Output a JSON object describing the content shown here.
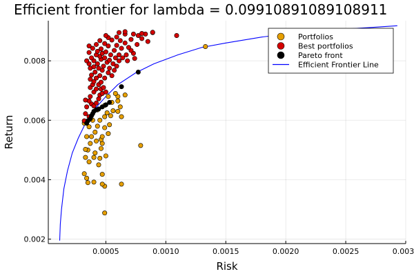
{
  "chart_data": {
    "type": "scatter",
    "title": "Efficient frontier for lambda = 0.09910891089108911",
    "xlabel": "Risk",
    "ylabel": "Return",
    "xlim": [
      2e-05,
      0.003
    ],
    "ylim": [
      0.00185,
      0.00935
    ],
    "grid": true,
    "legend_position": "top-right",
    "x_ticks": [
      {
        "value": 0.0005,
        "label": "0.0005"
      },
      {
        "value": 0.001,
        "label": "0.0010"
      },
      {
        "value": 0.0015,
        "label": "0.0015"
      },
      {
        "value": 0.002,
        "label": "0.0020"
      },
      {
        "value": 0.0025,
        "label": "0.0025"
      },
      {
        "value": 0.003,
        "label": "0.0030"
      }
    ],
    "y_ticks": [
      {
        "value": 0.002,
        "label": "0.002"
      },
      {
        "value": 0.004,
        "label": "0.004"
      },
      {
        "value": 0.006,
        "label": "0.006"
      },
      {
        "value": 0.008,
        "label": "0.008"
      }
    ],
    "series": [
      {
        "name": "Portfolios",
        "kind": "scatter",
        "color": "#e69f00",
        "points": [
          [
            0.00049,
            0.00288
          ],
          [
            0.00049,
            0.00378
          ],
          [
            0.00047,
            0.00385
          ],
          [
            0.00063,
            0.00385
          ],
          [
            0.00035,
            0.0039
          ],
          [
            0.0004,
            0.00392
          ],
          [
            0.00034,
            0.00405
          ],
          [
            0.00032,
            0.0042
          ],
          [
            0.00047,
            0.00418
          ],
          [
            0.00044,
            0.0045
          ],
          [
            0.00036,
            0.0046
          ],
          [
            0.0004,
            0.00475
          ],
          [
            0.00045,
            0.00472
          ],
          [
            0.00033,
            0.00475
          ],
          [
            0.0005,
            0.0048
          ],
          [
            0.00041,
            0.0049
          ],
          [
            0.00035,
            0.005
          ],
          [
            0.00046,
            0.00505
          ],
          [
            0.00033,
            0.00502
          ],
          [
            0.00079,
            0.00515
          ],
          [
            0.00037,
            0.00522
          ],
          [
            0.00047,
            0.00522
          ],
          [
            0.00042,
            0.0053
          ],
          [
            0.00046,
            0.00535
          ],
          [
            0.00038,
            0.00545
          ],
          [
            0.00047,
            0.00545
          ],
          [
            0.00034,
            0.00545
          ],
          [
            0.00052,
            0.00555
          ],
          [
            0.00041,
            0.0056
          ],
          [
            0.00049,
            0.00575
          ],
          [
            0.00036,
            0.00578
          ],
          [
            0.00043,
            0.0058
          ],
          [
            0.00053,
            0.00585
          ],
          [
            0.00032,
            0.0059
          ],
          [
            0.00039,
            0.006
          ],
          [
            0.00045,
            0.006
          ],
          [
            0.00049,
            0.00612
          ],
          [
            0.00054,
            0.00615
          ],
          [
            0.00063,
            0.00612
          ],
          [
            0.00051,
            0.00625
          ],
          [
            0.00056,
            0.00632
          ],
          [
            0.0006,
            0.0063
          ],
          [
            0.00043,
            0.00635
          ],
          [
            0.00062,
            0.00645
          ],
          [
            0.00049,
            0.0065
          ],
          [
            0.00055,
            0.0066
          ],
          [
            0.0006,
            0.00665
          ],
          [
            0.0006,
            0.0068
          ],
          [
            0.00066,
            0.00685
          ],
          [
            0.00052,
            0.0068
          ],
          [
            0.00058,
            0.0069
          ],
          [
            0.00133,
            0.00848
          ]
        ]
      },
      {
        "name": "Best portfolios",
        "kind": "scatter",
        "color": "#d40000",
        "points": [
          [
            0.00032,
            0.00598
          ],
          [
            0.00033,
            0.00622
          ],
          [
            0.00036,
            0.00612
          ],
          [
            0.00034,
            0.00645
          ],
          [
            0.00038,
            0.00655
          ],
          [
            0.00036,
            0.00665
          ],
          [
            0.00033,
            0.00668
          ],
          [
            0.0004,
            0.00648
          ],
          [
            0.00042,
            0.00658
          ],
          [
            0.00037,
            0.0068
          ],
          [
            0.00044,
            0.00672
          ],
          [
            0.00045,
            0.00685
          ],
          [
            0.0004,
            0.00695
          ],
          [
            0.00047,
            0.0069
          ],
          [
            0.00042,
            0.00705
          ],
          [
            0.00046,
            0.00705
          ],
          [
            0.0005,
            0.00695
          ],
          [
            0.00048,
            0.0071
          ],
          [
            0.00037,
            0.0071
          ],
          [
            0.00039,
            0.0072
          ],
          [
            0.00044,
            0.0072
          ],
          [
            0.0004,
            0.0073
          ],
          [
            0.00046,
            0.00728
          ],
          [
            0.00037,
            0.00738
          ],
          [
            0.00042,
            0.00742
          ],
          [
            0.00049,
            0.00742
          ],
          [
            0.00045,
            0.0075
          ],
          [
            0.00038,
            0.00752
          ],
          [
            0.00055,
            0.0075
          ],
          [
            0.00052,
            0.0076
          ],
          [
            0.00041,
            0.00762
          ],
          [
            0.00047,
            0.00768
          ],
          [
            0.00057,
            0.00768
          ],
          [
            0.00037,
            0.00775
          ],
          [
            0.00044,
            0.00775
          ],
          [
            0.00053,
            0.00775
          ],
          [
            0.0004,
            0.0078
          ],
          [
            0.00048,
            0.00782
          ],
          [
            0.00059,
            0.00782
          ],
          [
            0.00036,
            0.0079
          ],
          [
            0.00043,
            0.0079
          ],
          [
            0.00051,
            0.00795
          ],
          [
            0.00056,
            0.0079
          ],
          [
            0.00034,
            0.008
          ],
          [
            0.0004,
            0.008
          ],
          [
            0.00046,
            0.00805
          ],
          [
            0.00053,
            0.00802
          ],
          [
            0.00061,
            0.008
          ],
          [
            0.00068,
            0.008
          ],
          [
            0.00038,
            0.0081
          ],
          [
            0.00045,
            0.00815
          ],
          [
            0.00049,
            0.0081
          ],
          [
            0.00058,
            0.0081
          ],
          [
            0.00064,
            0.0081
          ],
          [
            0.00074,
            0.00808
          ],
          [
            0.00042,
            0.0082
          ],
          [
            0.00054,
            0.0082
          ],
          [
            0.00047,
            0.00825
          ],
          [
            0.00061,
            0.0082
          ],
          [
            0.00067,
            0.0082
          ],
          [
            0.00073,
            0.00825
          ],
          [
            0.00036,
            0.00828
          ],
          [
            0.00043,
            0.00832
          ],
          [
            0.0005,
            0.0083
          ],
          [
            0.00057,
            0.00835
          ],
          [
            0.00071,
            0.00835
          ],
          [
            0.00039,
            0.00842
          ],
          [
            0.00046,
            0.0084
          ],
          [
            0.00063,
            0.00842
          ],
          [
            0.00069,
            0.00845
          ],
          [
            0.00036,
            0.0085
          ],
          [
            0.00052,
            0.0085
          ],
          [
            0.00059,
            0.00852
          ],
          [
            0.00076,
            0.00855
          ],
          [
            0.00085,
            0.00865
          ],
          [
            0.00042,
            0.00855
          ],
          [
            0.00049,
            0.00858
          ],
          [
            0.00066,
            0.0086
          ],
          [
            0.00062,
            0.00868
          ],
          [
            0.0008,
            0.00875
          ],
          [
            0.00055,
            0.0087
          ],
          [
            0.00071,
            0.00872
          ],
          [
            0.00045,
            0.00868
          ],
          [
            0.00052,
            0.00878
          ],
          [
            0.00059,
            0.0088
          ],
          [
            0.00077,
            0.00885
          ],
          [
            0.00083,
            0.0089
          ],
          [
            0.00066,
            0.0089
          ],
          [
            0.0005,
            0.00885
          ],
          [
            0.00073,
            0.0089
          ],
          [
            0.00089,
            0.00895
          ],
          [
            0.0008,
            0.00892
          ],
          [
            0.00061,
            0.00895
          ],
          [
            0.00066,
            0.00898
          ],
          [
            0.00109,
            0.00885
          ],
          [
            0.00089,
            0.00896
          ]
        ]
      },
      {
        "name": "Pareto front",
        "kind": "scatter",
        "color": "#000000",
        "points": [
          [
            0.00034,
            0.0059
          ],
          [
            0.00035,
            0.00598
          ],
          [
            0.00037,
            0.00605
          ],
          [
            0.00038,
            0.00615
          ],
          [
            0.00039,
            0.00622
          ],
          [
            0.0004,
            0.0063
          ],
          [
            0.00042,
            0.00635
          ],
          [
            0.00044,
            0.00638
          ],
          [
            0.00047,
            0.00645
          ],
          [
            0.0005,
            0.00652
          ],
          [
            0.00053,
            0.0066
          ],
          [
            0.00063,
            0.00713
          ],
          [
            0.00077,
            0.00762
          ]
        ]
      },
      {
        "name": "Efficient Frontier Line",
        "kind": "line",
        "color": "#0000ff",
        "points": [
          [
            0.000115,
            0.00195
          ],
          [
            0.00012,
            0.0025
          ],
          [
            0.00013,
            0.003
          ],
          [
            0.00015,
            0.0037
          ],
          [
            0.00018,
            0.0043
          ],
          [
            0.00022,
            0.0049
          ],
          [
            0.00027,
            0.0054
          ],
          [
            0.00033,
            0.0059
          ],
          [
            0.0004,
            0.00635
          ],
          [
            0.0005,
            0.0068
          ],
          [
            0.0006,
            0.0072
          ],
          [
            0.00075,
            0.0076
          ],
          [
            0.0009,
            0.0079
          ],
          [
            0.0011,
            0.0082
          ],
          [
            0.0013,
            0.00845
          ],
          [
            0.0015,
            0.0086
          ],
          [
            0.0018,
            0.0088
          ],
          [
            0.0021,
            0.00895
          ],
          [
            0.0024,
            0.00905
          ],
          [
            0.0027,
            0.00912
          ],
          [
            0.00293,
            0.00918
          ]
        ]
      }
    ]
  }
}
